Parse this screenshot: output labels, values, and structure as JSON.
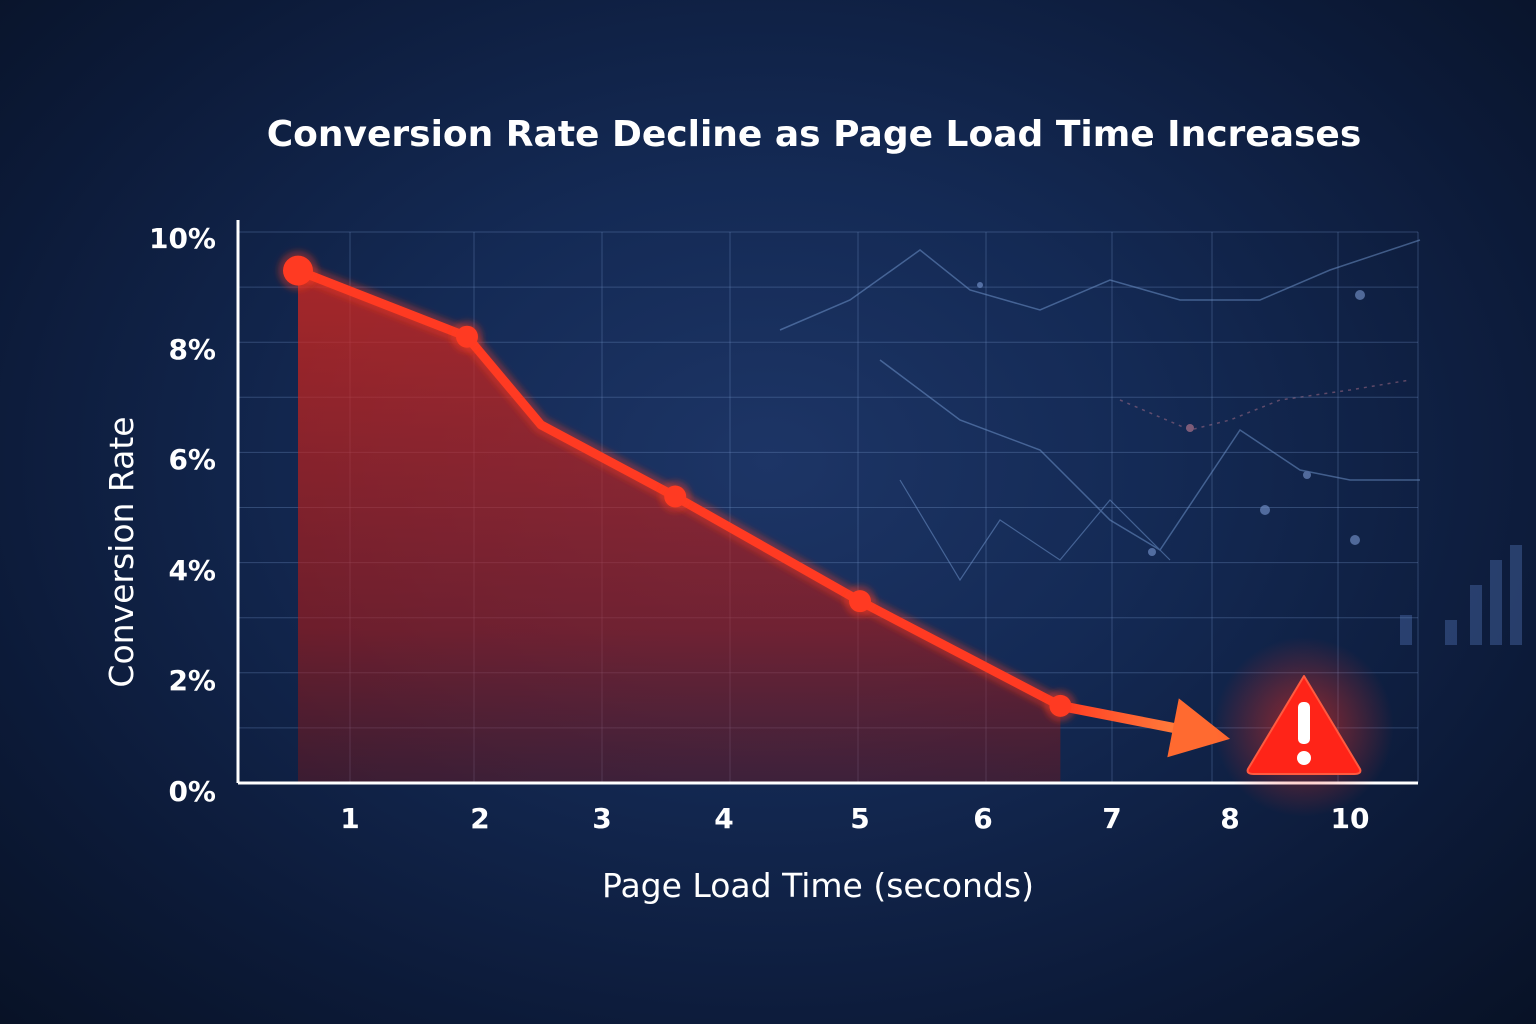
{
  "chart_data": {
    "type": "area",
    "title": "Conversion Rate Decline as Page Load Time Increases",
    "xlabel": "Page Load Time (seconds)",
    "ylabel": "Conversion Rate",
    "x_ticks": [
      "1",
      "2",
      "3",
      "4",
      "5",
      "6",
      "7",
      "8",
      "10"
    ],
    "y_ticks": [
      "0%",
      "2%",
      "4%",
      "6%",
      "8%",
      "10%"
    ],
    "ylim": [
      0,
      10
    ],
    "points": [
      {
        "x": 0.6,
        "y": 9.3
      },
      {
        "x": 1.9,
        "y": 8.1
      },
      {
        "x": 2.5,
        "y": 6.5
      },
      {
        "x": 3.6,
        "y": 5.2
      },
      {
        "x": 5.0,
        "y": 3.3
      },
      {
        "x": 6.6,
        "y": 1.4
      }
    ],
    "arrow_end": {
      "x": 8.0,
      "y": 0.8
    },
    "marked_points_index": [
      0,
      1,
      3,
      4,
      5
    ],
    "grid": true,
    "legend": "none",
    "annotation": "warning-icon",
    "colors": {
      "line": "#ff3a22",
      "area": "#d4201a",
      "warning": "#ff2418",
      "axis": "#ffffff",
      "grid": "#6f8fc4"
    }
  }
}
